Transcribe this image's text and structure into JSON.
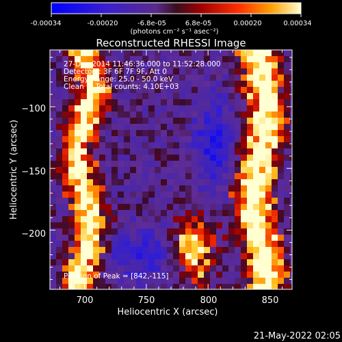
{
  "colorbar": {
    "ticks": [
      "-0.00034",
      "-0.00020",
      "-6.8e-05",
      "6.8e-05",
      "0.00020",
      "0.00034"
    ],
    "unit_label": "(photons cm⁻² s⁻¹ asec⁻²)"
  },
  "footer": {
    "date_stamp": "21-May-2022 02:05"
  },
  "chart_data": {
    "type": "heatmap",
    "title": "Reconstructed RHESSI Image",
    "xlabel": "Heliocentric X (arcsec)",
    "ylabel": "Heliocentric Y (arcsec)",
    "xlim": [
      672,
      868
    ],
    "ylim": [
      -248,
      -54
    ],
    "x_ticks": [
      700,
      750,
      800,
      850
    ],
    "y_ticks": [
      -100,
      -150,
      -200
    ],
    "x_tick_labels": [
      "700",
      "750",
      "800",
      "850"
    ],
    "y_tick_labels": [
      "−100",
      "−150",
      "−200"
    ],
    "color_range": [
      -0.00034,
      0.00034
    ],
    "annotations": [
      "27-Dec-2014 11:46:36.000 to 11:52:28.000",
      "Detectors: 3F 6F 7F 9F, Att 0",
      "Energy Range: 25.0 - 50.0 keV",
      "Clean     Total counts: 4.10E+03"
    ],
    "peak_label": "Position of Peak = [842,-115]",
    "peak_position": [
      842,
      -115
    ],
    "bright_bands": [
      {
        "name": "left-ridge",
        "x_center": 700,
        "width_arcsec": 25
      },
      {
        "name": "right-ridge",
        "x_center": 842,
        "width_arcsec": 30
      },
      {
        "name": "lower-middle-blob",
        "x_center": 790,
        "y_center": -215
      }
    ]
  }
}
